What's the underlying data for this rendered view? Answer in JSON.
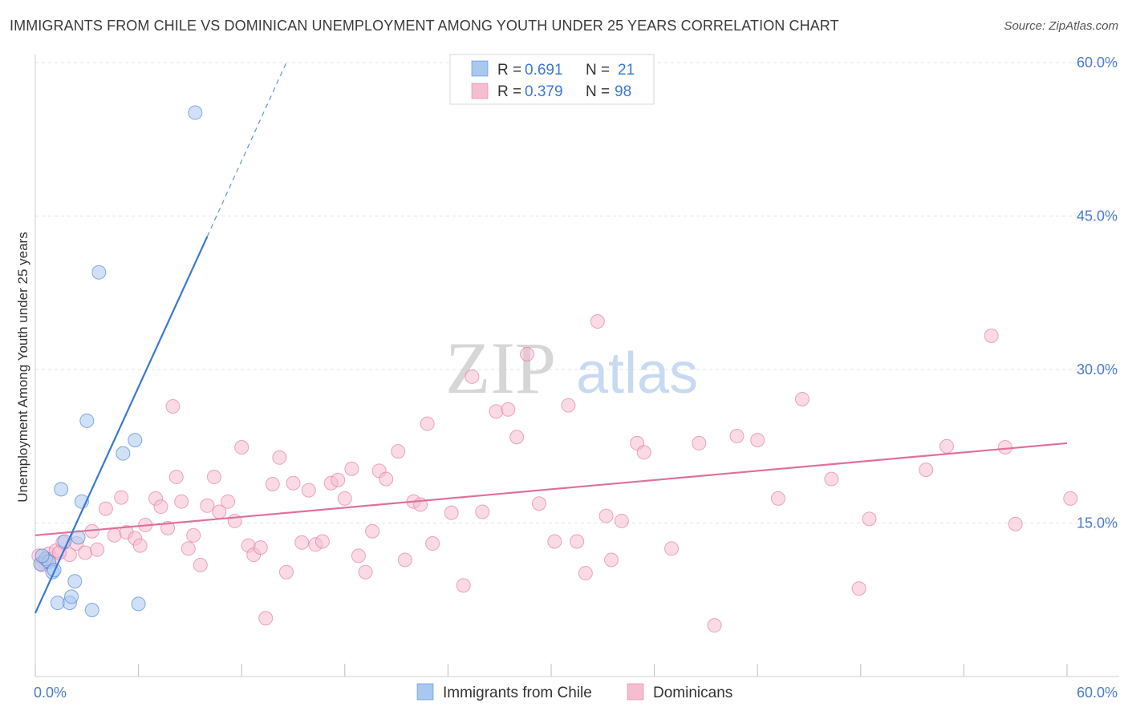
{
  "title": "IMMIGRANTS FROM CHILE VS DOMINICAN UNEMPLOYMENT AMONG YOUTH UNDER 25 YEARS CORRELATION CHART",
  "source": "Source: ZipAtlas.com",
  "watermark": {
    "zip": "ZIP",
    "atlas": "atlas"
  },
  "colors": {
    "blue": "#3a78d4",
    "blue_fill": "#a9c8f0",
    "pink": "#e0709a",
    "pink_fill": "#f6bdd0",
    "grid": "#e3e3e3",
    "tick_text": "#4a7bd0"
  },
  "legend": {
    "rows": [
      {
        "r_label": "R =",
        "r_value": "0.691",
        "n_label": "N =",
        "n_value": "21",
        "color": "blue"
      },
      {
        "r_label": "R =",
        "r_value": "0.379",
        "n_label": "N =",
        "n_value": "98",
        "color": "pink"
      }
    ]
  },
  "chart_data": {
    "type": "scatter",
    "title": "IMMIGRANTS FROM CHILE VS DOMINICAN UNEMPLOYMENT AMONG YOUTH UNDER 25 YEARS CORRELATION CHART",
    "xlabel": "",
    "ylabel": "Unemployment Among Youth under 25 years",
    "xlim": [
      0,
      60
    ],
    "ylim": [
      0,
      60
    ],
    "x_ticks": [
      "0.0%",
      "60.0%"
    ],
    "y_ticks": [
      {
        "value": 15,
        "label": "15.0%"
      },
      {
        "value": 30,
        "label": "30.0%"
      },
      {
        "value": 45,
        "label": "45.0%"
      },
      {
        "value": 60,
        "label": "60.0%"
      }
    ],
    "grid": true,
    "legend_position": "top-center",
    "series": [
      {
        "name": "Immigrants from Chile",
        "color": "blue",
        "trend": {
          "x": [
            0,
            10.0
          ],
          "y": [
            6.2,
            43.0
          ],
          "dashed_to": [
            14.6,
            60.0
          ]
        },
        "points": [
          [
            0.3,
            11.0
          ],
          [
            0.6,
            11.5
          ],
          [
            0.8,
            11.2
          ],
          [
            1.0,
            10.2
          ],
          [
            1.1,
            10.4
          ],
          [
            1.3,
            7.2
          ],
          [
            1.5,
            18.3
          ],
          [
            1.7,
            13.2
          ],
          [
            2.0,
            7.2
          ],
          [
            2.1,
            7.8
          ],
          [
            2.3,
            9.3
          ],
          [
            2.5,
            13.6
          ],
          [
            2.7,
            17.1
          ],
          [
            3.0,
            25.0
          ],
          [
            3.3,
            6.5
          ],
          [
            3.7,
            39.5
          ],
          [
            5.1,
            21.8
          ],
          [
            5.8,
            23.1
          ],
          [
            6.0,
            7.1
          ],
          [
            9.3,
            55.1
          ],
          [
            0.4,
            11.8
          ]
        ]
      },
      {
        "name": "Dominicans",
        "color": "pink",
        "trend": {
          "x": [
            0,
            60
          ],
          "y": [
            13.8,
            22.8
          ]
        },
        "points": [
          [
            0.2,
            11.8
          ],
          [
            0.5,
            11.2
          ],
          [
            0.8,
            12.0
          ],
          [
            1.0,
            11.5
          ],
          [
            1.2,
            12.3
          ],
          [
            1.6,
            13.1
          ],
          [
            2.0,
            11.9
          ],
          [
            2.4,
            13.0
          ],
          [
            2.9,
            12.1
          ],
          [
            3.3,
            14.2
          ],
          [
            3.6,
            12.4
          ],
          [
            4.1,
            16.4
          ],
          [
            4.6,
            13.8
          ],
          [
            5.0,
            17.5
          ],
          [
            5.3,
            14.1
          ],
          [
            5.8,
            13.5
          ],
          [
            6.1,
            12.8
          ],
          [
            6.4,
            14.8
          ],
          [
            7.0,
            17.4
          ],
          [
            7.3,
            16.6
          ],
          [
            7.7,
            14.5
          ],
          [
            8.0,
            26.4
          ],
          [
            8.2,
            19.5
          ],
          [
            8.5,
            17.1
          ],
          [
            8.9,
            12.5
          ],
          [
            9.2,
            13.8
          ],
          [
            9.6,
            10.9
          ],
          [
            10.0,
            16.7
          ],
          [
            10.4,
            19.5
          ],
          [
            10.7,
            16.1
          ],
          [
            11.2,
            17.1
          ],
          [
            11.6,
            15.2
          ],
          [
            12.0,
            22.4
          ],
          [
            12.4,
            12.8
          ],
          [
            12.7,
            11.9
          ],
          [
            13.1,
            12.6
          ],
          [
            13.4,
            5.7
          ],
          [
            13.8,
            18.8
          ],
          [
            14.2,
            21.4
          ],
          [
            14.6,
            10.2
          ],
          [
            15.0,
            18.9
          ],
          [
            15.5,
            13.1
          ],
          [
            15.9,
            18.2
          ],
          [
            16.3,
            12.9
          ],
          [
            16.7,
            13.2
          ],
          [
            17.2,
            18.9
          ],
          [
            17.6,
            19.2
          ],
          [
            18.0,
            17.4
          ],
          [
            18.4,
            20.3
          ],
          [
            18.8,
            11.8
          ],
          [
            19.2,
            10.2
          ],
          [
            19.6,
            14.2
          ],
          [
            20.0,
            20.1
          ],
          [
            20.4,
            19.3
          ],
          [
            21.1,
            22.0
          ],
          [
            21.5,
            11.4
          ],
          [
            22.0,
            17.1
          ],
          [
            22.4,
            16.8
          ],
          [
            22.8,
            24.7
          ],
          [
            23.1,
            13.0
          ],
          [
            24.2,
            16.0
          ],
          [
            24.9,
            8.9
          ],
          [
            25.4,
            29.3
          ],
          [
            26.0,
            16.1
          ],
          [
            26.8,
            25.9
          ],
          [
            27.5,
            26.1
          ],
          [
            28.0,
            23.4
          ],
          [
            28.6,
            31.5
          ],
          [
            29.3,
            16.9
          ],
          [
            30.2,
            13.2
          ],
          [
            31.0,
            26.5
          ],
          [
            31.5,
            13.2
          ],
          [
            32.0,
            10.1
          ],
          [
            32.7,
            34.7
          ],
          [
            33.2,
            15.7
          ],
          [
            33.5,
            11.4
          ],
          [
            34.1,
            15.2
          ],
          [
            35.0,
            22.8
          ],
          [
            35.4,
            21.9
          ],
          [
            37.0,
            12.5
          ],
          [
            38.6,
            22.8
          ],
          [
            39.5,
            5.0
          ],
          [
            40.8,
            23.5
          ],
          [
            42.0,
            23.1
          ],
          [
            43.2,
            17.4
          ],
          [
            44.6,
            27.1
          ],
          [
            46.3,
            19.3
          ],
          [
            47.9,
            8.6
          ],
          [
            48.5,
            15.4
          ],
          [
            51.8,
            20.2
          ],
          [
            53.0,
            22.5
          ],
          [
            55.6,
            33.3
          ],
          [
            56.4,
            22.4
          ],
          [
            57.0,
            14.9
          ],
          [
            60.2,
            17.4
          ],
          [
            0.4,
            10.9
          ],
          [
            0.7,
            11.3
          ],
          [
            1.4,
            12.1
          ]
        ]
      }
    ]
  },
  "axis_labels": {
    "x_min": "0.0%",
    "x_max": "60.0%",
    "ylabel": "Unemployment Among Youth under 25 years"
  },
  "bottom_legend": {
    "items": [
      {
        "label": "Immigrants from Chile",
        "color": "blue"
      },
      {
        "label": "Dominicans",
        "color": "pink"
      }
    ]
  }
}
